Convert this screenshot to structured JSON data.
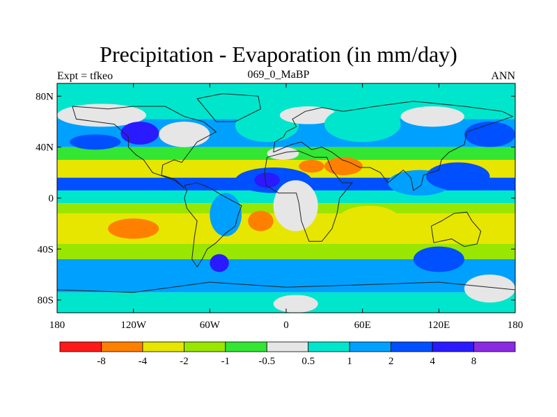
{
  "header": {
    "title": "Precipitation - Evaporation (in mm/day)",
    "left_label": "Expt = tfkeo",
    "center_label": "069_0_MaBP",
    "right_label": "ANN"
  },
  "axes": {
    "y_ticks": [
      {
        "value": 80,
        "label": "80N"
      },
      {
        "value": 40,
        "label": "40N"
      },
      {
        "value": 0,
        "label": "0"
      },
      {
        "value": -40,
        "label": "40S"
      },
      {
        "value": -80,
        "label": "80S"
      }
    ],
    "x_ticks": [
      {
        "value": -180,
        "label": "180"
      },
      {
        "value": -120,
        "label": "120W"
      },
      {
        "value": -60,
        "label": "60W"
      },
      {
        "value": 0,
        "label": "0"
      },
      {
        "value": 60,
        "label": "60E"
      },
      {
        "value": 120,
        "label": "120E"
      },
      {
        "value": 180,
        "label": "180"
      }
    ],
    "lon_range": [
      -180,
      180
    ],
    "lat_range": [
      -90,
      90
    ]
  },
  "colorbar": {
    "colors": [
      "#ff1a1a",
      "#ff8000",
      "#e6e600",
      "#99e600",
      "#33e633",
      "#e6e6e6",
      "#00e6cc",
      "#00a0ff",
      "#0050ff",
      "#2a1aff",
      "#8a2be2"
    ],
    "labels": [
      "-8",
      "-4",
      "-2",
      "-1",
      "-0.5",
      "0.5",
      "1",
      "2",
      "4",
      "8"
    ]
  },
  "map": {
    "bands": [
      {
        "lat_top": 90,
        "lat_bottom": 62,
        "color": "#00e6cc"
      },
      {
        "lat_top": 62,
        "lat_bottom": 40,
        "color": "#00a0ff"
      },
      {
        "lat_top": 40,
        "lat_bottom": 30,
        "color": "#33e633"
      },
      {
        "lat_top": 30,
        "lat_bottom": 16,
        "color": "#e6e600"
      },
      {
        "lat_top": 16,
        "lat_bottom": 6,
        "color": "#0050ff"
      },
      {
        "lat_top": 6,
        "lat_bottom": -4,
        "color": "#00e6cc"
      },
      {
        "lat_top": -4,
        "lat_bottom": -12,
        "color": "#99e600"
      },
      {
        "lat_top": -12,
        "lat_bottom": -36,
        "color": "#e6e600"
      },
      {
        "lat_top": -36,
        "lat_bottom": -48,
        "color": "#99e600"
      },
      {
        "lat_top": -48,
        "lat_bottom": -74,
        "color": "#00a0ff"
      },
      {
        "lat_top": -74,
        "lat_bottom": -90,
        "color": "#00e6cc"
      }
    ],
    "patches": [
      {
        "lon": [
          -180,
          -110
        ],
        "lat": [
          74,
          56
        ],
        "color": "#e6e6e6"
      },
      {
        "lon": [
          -170,
          -130
        ],
        "lat": [
          50,
          38
        ],
        "color": "#0050ff"
      },
      {
        "lon": [
          -100,
          -60
        ],
        "lat": [
          60,
          40
        ],
        "color": "#e6e6e6"
      },
      {
        "lon": [
          -130,
          -100
        ],
        "lat": [
          60,
          42
        ],
        "color": "#2a1aff"
      },
      {
        "lon": [
          -40,
          10
        ],
        "lat": [
          70,
          44
        ],
        "color": "#00e6cc"
      },
      {
        "lon": [
          -5,
          40
        ],
        "lat": [
          72,
          58
        ],
        "color": "#e6e6e6"
      },
      {
        "lon": [
          30,
          90
        ],
        "lat": [
          72,
          44
        ],
        "color": "#00e6cc"
      },
      {
        "lon": [
          90,
          140
        ],
        "lat": [
          72,
          56
        ],
        "color": "#e6e6e6"
      },
      {
        "lon": [
          140,
          180
        ],
        "lat": [
          60,
          40
        ],
        "color": "#0050ff"
      },
      {
        "lon": [
          -15,
          10
        ],
        "lat": [
          40,
          30
        ],
        "color": "#e6e6e6"
      },
      {
        "lon": [
          30,
          60
        ],
        "lat": [
          32,
          18
        ],
        "color": "#ff8000"
      },
      {
        "lon": [
          10,
          30
        ],
        "lat": [
          30,
          20
        ],
        "color": "#ff8000"
      },
      {
        "lon": [
          -40,
          20
        ],
        "lat": [
          24,
          4
        ],
        "color": "#0050ff"
      },
      {
        "lon": [
          -25,
          -5
        ],
        "lat": [
          20,
          8
        ],
        "color": "#2a1aff"
      },
      {
        "lon": [
          -10,
          25
        ],
        "lat": [
          14,
          -26
        ],
        "color": "#e6e6e6"
      },
      {
        "lon": [
          -60,
          -35
        ],
        "lat": [
          4,
          -30
        ],
        "color": "#00a0ff"
      },
      {
        "lon": [
          -30,
          -10
        ],
        "lat": [
          -10,
          -26
        ],
        "color": "#ff8000"
      },
      {
        "lon": [
          -140,
          -100
        ],
        "lat": [
          -16,
          -32
        ],
        "color": "#ff8000"
      },
      {
        "lon": [
          80,
          130
        ],
        "lat": [
          22,
          2
        ],
        "color": "#00a0ff"
      },
      {
        "lon": [
          110,
          160
        ],
        "lat": [
          28,
          6
        ],
        "color": "#0050ff"
      },
      {
        "lon": [
          40,
          90
        ],
        "lat": [
          -6,
          -30
        ],
        "color": "#e6e600"
      },
      {
        "lon": [
          100,
          140
        ],
        "lat": [
          -38,
          -58
        ],
        "color": "#0050ff"
      },
      {
        "lon": [
          -60,
          -45
        ],
        "lat": [
          -44,
          -58
        ],
        "color": "#2a1aff"
      },
      {
        "lon": [
          140,
          180
        ],
        "lat": [
          -60,
          -82
        ],
        "color": "#e6e6e6"
      },
      {
        "lon": [
          -10,
          25
        ],
        "lat": [
          -76,
          -90
        ],
        "color": "#e6e6e6"
      }
    ]
  }
}
